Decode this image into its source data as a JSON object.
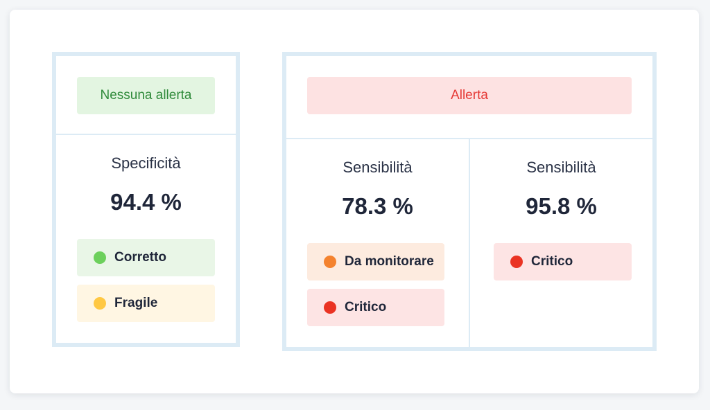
{
  "left_panel": {
    "header": "Nessuna allerta",
    "metric_label": "Specificità",
    "metric_value": "94.4 %",
    "tags": [
      {
        "label": "Corretto",
        "color": "#6cd05c"
      },
      {
        "label": "Fragile",
        "color": "#ffc843"
      }
    ]
  },
  "right_panel": {
    "header": "Allerta",
    "columns": [
      {
        "metric_label": "Sensibilità",
        "metric_value": "78.3 %",
        "tags": [
          {
            "label": "Da monitorare",
            "color": "#f4822e"
          },
          {
            "label": "Critico",
            "color": "#ea3323"
          }
        ]
      },
      {
        "metric_label": "Sensibilità",
        "metric_value": "95.8 %",
        "tags": [
          {
            "label": "Critico",
            "color": "#ea3323"
          }
        ]
      }
    ]
  },
  "colors": {
    "panel_border": "#dcebf5",
    "no_alert_bg": "#e3f5e1",
    "no_alert_text": "#2f8a3a",
    "alert_bg": "#fde2e2",
    "alert_text": "#e53935"
  }
}
